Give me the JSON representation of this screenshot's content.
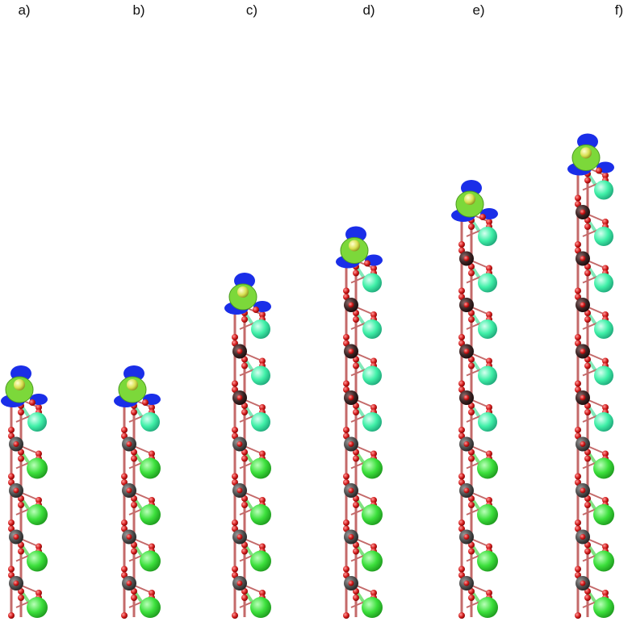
{
  "figure": {
    "panels": [
      {
        "label": "a)",
        "layers": 4,
        "surface_rows": 1
      },
      {
        "label": "b)",
        "layers": 4,
        "surface_rows": 1
      },
      {
        "label": "c)",
        "layers": 4,
        "surface_rows": 3
      },
      {
        "label": "d)",
        "layers": 4,
        "surface_rows": 4
      },
      {
        "label": "e)",
        "layers": 4,
        "surface_rows": 5
      },
      {
        "label": "f)",
        "layers": 4,
        "surface_rows": 6
      }
    ],
    "colors": {
      "metal_atom": "#4d4d4d",
      "oxygen_atom": "#d01818",
      "bond": "#c46a6a",
      "bulk_cation": "#3ce03c",
      "surface_cation": "#40f0a8",
      "density_gain": "#7cd83a",
      "density_loss": "#1a2ee8",
      "adsorbate": "#d8e050"
    }
  }
}
